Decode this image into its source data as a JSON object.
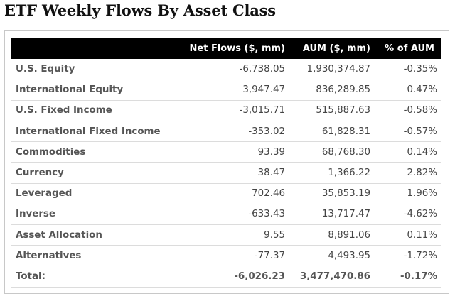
{
  "title": "ETF Weekly Flows By Asset Class",
  "table": {
    "headers": [
      "",
      "Net Flows ($, mm)",
      "AUM ($, mm)",
      "% of AUM"
    ],
    "rows": [
      {
        "label": "U.S. Equity",
        "net_flows": "-6,738.05",
        "aum": "1,930,374.87",
        "pct": "-0.35%"
      },
      {
        "label": "International Equity",
        "net_flows": "3,947.47",
        "aum": "836,289.85",
        "pct": "0.47%"
      },
      {
        "label": "U.S. Fixed Income",
        "net_flows": "-3,015.71",
        "aum": "515,887.63",
        "pct": "-0.58%"
      },
      {
        "label": "International Fixed Income",
        "net_flows": "-353.02",
        "aum": "61,828.31",
        "pct": "-0.57%"
      },
      {
        "label": "Commodities",
        "net_flows": "93.39",
        "aum": "68,768.30",
        "pct": "0.14%"
      },
      {
        "label": "Currency",
        "net_flows": "38.47",
        "aum": "1,366.22",
        "pct": "2.82%"
      },
      {
        "label": "Leveraged",
        "net_flows": "702.46",
        "aum": "35,853.19",
        "pct": "1.96%"
      },
      {
        "label": "Inverse",
        "net_flows": "-633.43",
        "aum": "13,717.47",
        "pct": "-4.62%"
      },
      {
        "label": "Asset Allocation",
        "net_flows": "9.55",
        "aum": "8,891.06",
        "pct": "0.11%"
      },
      {
        "label": "Alternatives",
        "net_flows": "-77.37",
        "aum": "4,493.95",
        "pct": "-1.72%"
      }
    ],
    "total": {
      "label": "Total:",
      "net_flows": "-6,026.23",
      "aum": "3,477,470.86",
      "pct": "-0.17%"
    }
  },
  "colors": {
    "header_bg": "#000000",
    "header_text": "#ffffff",
    "row_border": "#dcdcdc",
    "frame_border": "#c8c8c8"
  }
}
